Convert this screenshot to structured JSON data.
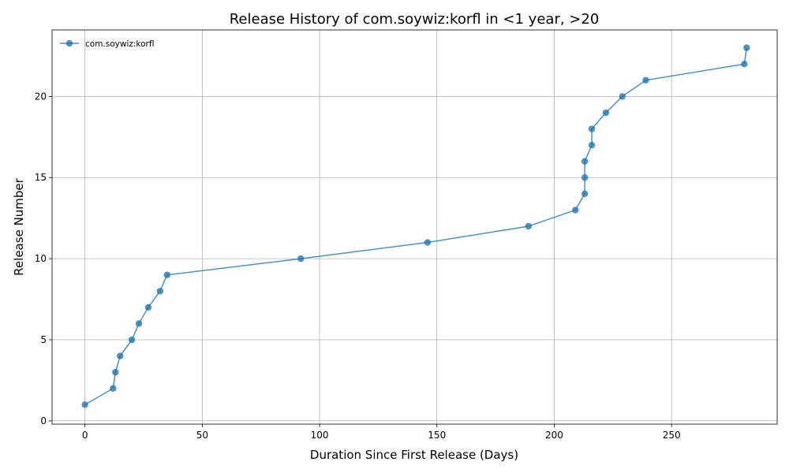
{
  "chart_data": {
    "type": "line",
    "title": "Release History of com.soywiz:korfl in <1 year, >20",
    "xlabel": "Duration Since First Release (Days)",
    "ylabel": "Release Number",
    "xlim": [
      -14,
      295
    ],
    "ylim": [
      -0.2,
      24.1
    ],
    "xticks": [
      0,
      50,
      100,
      150,
      200,
      250
    ],
    "yticks": [
      0,
      5,
      10,
      15,
      20
    ],
    "grid": true,
    "legend_position": "top-left",
    "series": [
      {
        "name": "com.soywiz:korfl",
        "color": "#1f77b4",
        "x": [
          0,
          12,
          13,
          15,
          20,
          23,
          27,
          32,
          35,
          92,
          146,
          189,
          209,
          213,
          213,
          213,
          216,
          216,
          222,
          229,
          239,
          281,
          282
        ],
        "y": [
          1,
          2,
          3,
          4,
          5,
          6,
          7,
          8,
          9,
          10,
          11,
          12,
          13,
          14,
          15,
          16,
          17,
          18,
          19,
          20,
          21,
          22,
          23
        ]
      }
    ]
  }
}
